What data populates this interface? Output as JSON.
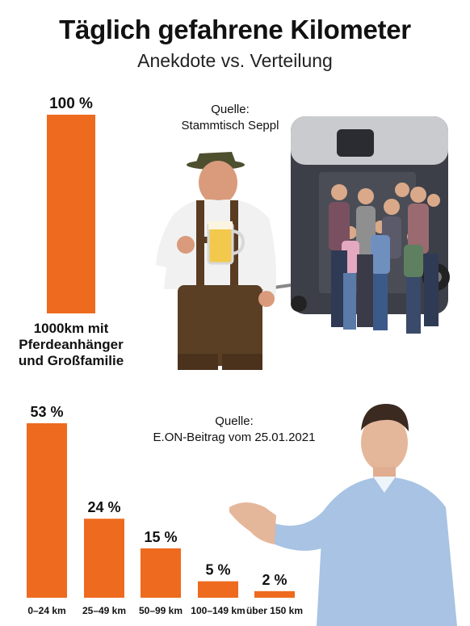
{
  "title": "Täglich gefahrene Kilometer",
  "subtitle": "Anekdote vs. Verteilung",
  "colors": {
    "bar": "#ee6a1f",
    "text": "#111111"
  },
  "chart_data": [
    {
      "type": "bar",
      "source_label": "Quelle:",
      "source_name": "Stammtisch Seppl",
      "categories": [
        "1000km mit Pferdeanhänger und Großfamilie"
      ],
      "category_lines": [
        "1000km mit",
        "Pferdeanhänger",
        "und Großfamilie"
      ],
      "values": [
        100
      ],
      "value_labels": [
        "100 %"
      ],
      "ylim": [
        0,
        100
      ]
    },
    {
      "type": "bar",
      "source_label": "Quelle:",
      "source_name": "E.ON-Beitrag vom 25.01.2021",
      "categories": [
        "0–24 km",
        "25–49 km",
        "50–99 km",
        "100–149 km",
        "über 150 km"
      ],
      "values": [
        53,
        24,
        15,
        5,
        2
      ],
      "value_labels": [
        "53 %",
        "24 %",
        "15 %",
        "5 %",
        "2 %"
      ],
      "ylim": [
        0,
        53
      ]
    }
  ],
  "illustrations": {
    "anecdote": "man-in-lederhosen-with-beer-and-family-with-horse-trailer-image",
    "distribution": "man-in-blue-shirt-presenting-image"
  }
}
